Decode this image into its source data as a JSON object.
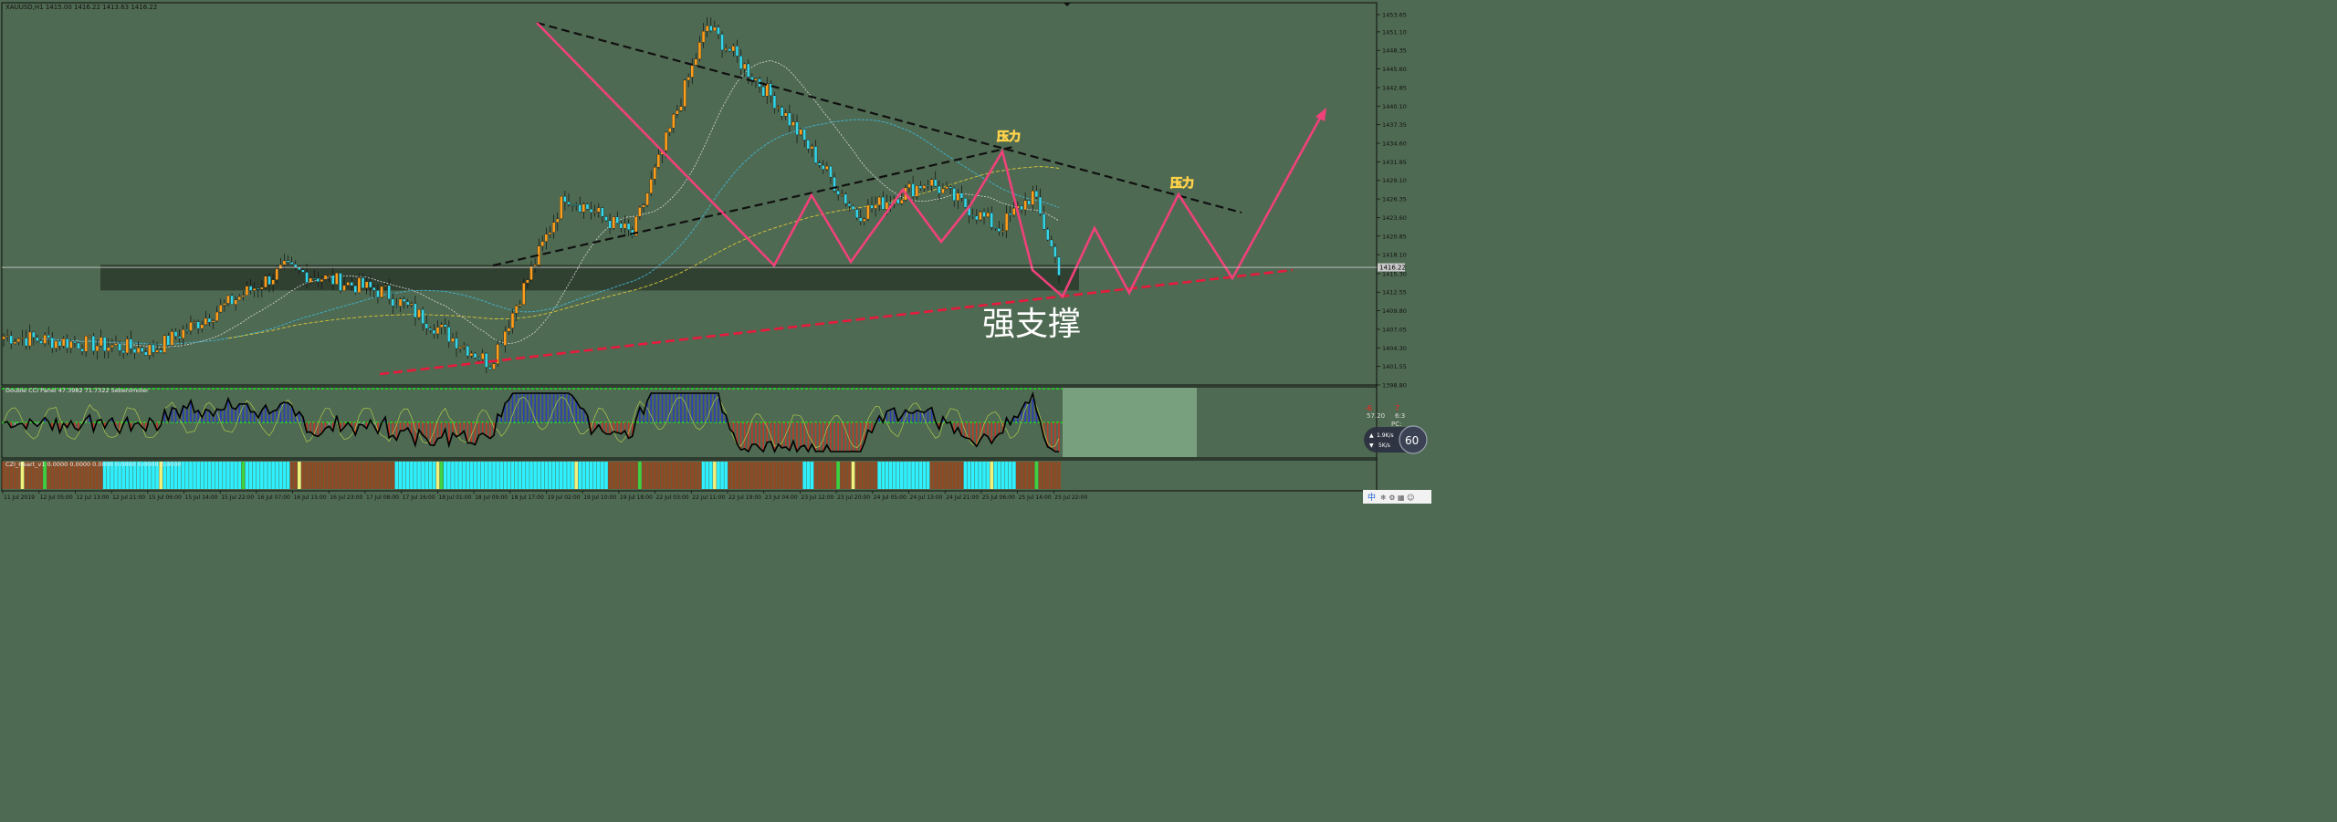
{
  "window": {
    "symbol_line": "XAUUSD,H1  1415.00 1416.22 1413.63 1416.22",
    "cci_panel_label": "Double CCI Panel 47.3982 71.7322 Sebenimoler",
    "heart_panel_label": "CZI_Heart_v1 0.0000 0.0000 0.0000 0.0000 0.0000 0.0000",
    "current_price_tag": "1416.22",
    "badge_percent": "60",
    "badge_speed_up": "1.9K/s",
    "badge_speed_down": "5K/s",
    "right_info_1": "57.20",
    "right_info_2": "6:3",
    "right_info_3": "PC:",
    "right_info_red_1": "-6",
    "right_info_red_2": "7",
    "ime_mark": "中"
  },
  "annotations": {
    "pressure_1": "压力",
    "pressure_2": "压力",
    "support": "强支撑"
  },
  "colors": {
    "background": "#4f6a52",
    "bull": "#ff9e1b",
    "bear": "#33d6e8",
    "pink_path": "#f0417a",
    "red_trend": "#e8193c",
    "black_trend": "#101010",
    "zone": "#2b3a2c",
    "ma_white": "#d8d8d8",
    "ma_cyan": "#3fb6d6",
    "ma_yellow": "#d9c63a",
    "heart_cyan": "#2ff0ff",
    "heart_brown": "#8c4b25",
    "cci_blue": "#2a3fb8",
    "cci_red": "#c0392b",
    "cci_grey": "#9b9b9b"
  },
  "chart_data": {
    "type": "candlestick",
    "symbol": "XAUUSD",
    "timeframe": "H1",
    "ylim": [
      1398.8,
      1455.0
    ],
    "y_ticks": [
      "1453.65",
      "1451.10",
      "1448.35",
      "1445.60",
      "1442.85",
      "1440.10",
      "1437.35",
      "1434.60",
      "1431.85",
      "1429.10",
      "1426.35",
      "1423.60",
      "1420.85",
      "1418.10",
      "1415.30",
      "1412.55",
      "1409.80",
      "1407.05",
      "1404.30",
      "1401.55",
      "1398.80"
    ],
    "x_ticks": [
      "11 Jul 2019",
      "12 Jul 05:00",
      "12 Jul 13:00",
      "12 Jul 21:00",
      "15 Jul 06:00",
      "15 Jul 14:00",
      "15 Jul 22:00",
      "16 Jul 07:00",
      "16 Jul 15:00",
      "16 Jul 23:00",
      "17 Jul 08:00",
      "17 Jul 16:00",
      "18 Jul 01:00",
      "18 Jul 09:00",
      "18 Jul 17:00",
      "19 Jul 02:00",
      "19 Jul 10:00",
      "19 Jul 18:00",
      "22 Jul 03:00",
      "22 Jul 11:00",
      "22 Jul 19:00",
      "23 Jul 04:00",
      "23 Jul 12:00",
      "23 Jul 20:00",
      "24 Jul 05:00",
      "24 Jul 13:00",
      "24 Jul 21:00",
      "25 Jul 06:00",
      "25 Jul 14:00",
      "25 Jul 22:00"
    ],
    "price_key_points": {
      "x_index": [
        0,
        40,
        75,
        102,
        130,
        150,
        168,
        188,
        206,
        228,
        247,
        266,
        275,
        282
      ],
      "price": [
        1406,
        1404,
        1416,
        1412.5,
        1402,
        1427,
        1421,
        1452,
        1441,
        1424,
        1429,
        1422,
        1427,
        1416
      ]
    },
    "zone": {
      "low": 1412.8,
      "high": 1416.6
    },
    "current_price": 1416.22
  }
}
